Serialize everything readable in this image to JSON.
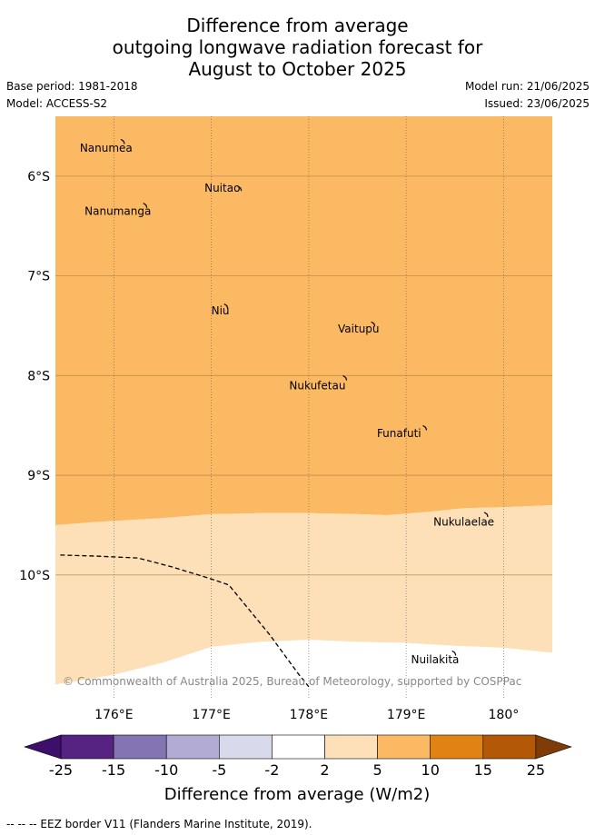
{
  "title": {
    "line1": "Difference from average",
    "line2": "outgoing longwave radiation forecast for",
    "line3": "August to October 2025"
  },
  "meta": {
    "base_period": "Base period: 1981-2018",
    "model": "Model: ACCESS-S2",
    "model_run": "Model run: 21/06/2025",
    "issued": "Issued: 23/06/2025"
  },
  "map": {
    "lon_range": [
      175.4,
      180.5
    ],
    "lat_range": [
      -5.4,
      -11.25
    ],
    "lon_ticks": [
      {
        "value": 176,
        "label": "176°E"
      },
      {
        "value": 177,
        "label": "177°E"
      },
      {
        "value": 178,
        "label": "178°E"
      },
      {
        "value": 179,
        "label": "179°E"
      },
      {
        "value": 180,
        "label": "180°"
      }
    ],
    "lat_ticks": [
      {
        "value": -6,
        "label": "6°S"
      },
      {
        "value": -7,
        "label": "7°S"
      },
      {
        "value": -8,
        "label": "8°S"
      },
      {
        "value": -9,
        "label": "9°S"
      },
      {
        "value": -10,
        "label": "10°S"
      }
    ],
    "base_fill_color": "#fcb964",
    "lower_fill_color": "#fde0b8",
    "lower_zone_boundary": [
      [
        175.4,
        -9.5
      ],
      [
        175.8,
        -9.47
      ],
      [
        176.5,
        -9.43
      ],
      [
        177.0,
        -9.39
      ],
      [
        177.5,
        -9.38
      ],
      [
        178.0,
        -9.38
      ],
      [
        178.5,
        -9.39
      ],
      [
        178.8,
        -9.4
      ],
      [
        179.2,
        -9.37
      ],
      [
        179.6,
        -9.33
      ],
      [
        180.0,
        -9.32
      ],
      [
        180.5,
        -9.3
      ]
    ],
    "lower_zone_bottom": [
      [
        180.5,
        -10.78
      ],
      [
        180.0,
        -10.73
      ],
      [
        179.5,
        -10.71
      ],
      [
        179.0,
        -10.68
      ],
      [
        178.5,
        -10.67
      ],
      [
        178.0,
        -10.65
      ],
      [
        177.5,
        -10.67
      ],
      [
        177.0,
        -10.72
      ],
      [
        176.5,
        -10.88
      ],
      [
        176.0,
        -11.0
      ],
      [
        175.4,
        -11.1
      ]
    ],
    "eez_border": [
      [
        175.45,
        -9.8
      ],
      [
        175.8,
        -9.81
      ],
      [
        176.25,
        -9.83
      ],
      [
        176.6,
        -9.92
      ],
      [
        177.0,
        -10.04
      ],
      [
        177.18,
        -10.1
      ],
      [
        177.6,
        -10.6
      ],
      [
        177.9,
        -11.0
      ],
      [
        178.0,
        -11.12
      ]
    ],
    "islands": [
      {
        "name": "Nanumea",
        "lon": 176.1,
        "lat": -5.65,
        "label_lon": 175.65,
        "label_lat": -5.72
      },
      {
        "name": "Nuitao",
        "lon": 177.3,
        "lat": -6.12,
        "label_lon": 176.93,
        "label_lat": -6.12
      },
      {
        "name": "Nanumanga",
        "lon": 176.33,
        "lat": -6.29,
        "label_lon": 175.7,
        "label_lat": -6.35
      },
      {
        "name": "Niu",
        "lon": 177.16,
        "lat": -7.3,
        "label_lon": 177.0,
        "label_lat": -7.35
      },
      {
        "name": "Vaitupu",
        "lon": 178.67,
        "lat": -7.48,
        "label_lon": 178.3,
        "label_lat": -7.53
      },
      {
        "name": "Nukufetau",
        "lon": 178.38,
        "lat": -8.02,
        "label_lon": 177.8,
        "label_lat": -8.1
      },
      {
        "name": "Funafuti",
        "lon": 179.2,
        "lat": -8.52,
        "label_lon": 178.7,
        "label_lat": -8.58
      },
      {
        "name": "Nukulaelae",
        "lon": 179.83,
        "lat": -9.39,
        "label_lon": 179.28,
        "label_lat": -9.47
      },
      {
        "name": "Nuilakita",
        "lon": 179.5,
        "lat": -10.78,
        "label_lon": 179.05,
        "label_lat": -10.85
      }
    ],
    "copyright": "© Commonwealth of Australia 2025, Bureau of Meteorology, supported by COSPPac"
  },
  "colorbar": {
    "ticks": [
      "-25",
      "-15",
      "-10",
      "-5",
      "-2",
      "2",
      "5",
      "10",
      "15",
      "25"
    ],
    "colors": [
      "#562383",
      "#8474b3",
      "#b2abd3",
      "#d8d9eb",
      "#ffffff",
      "#fde0b8",
      "#fcb964",
      "#e08214",
      "#b35806"
    ],
    "extend_low_color": "#3d0f6b",
    "extend_high_color": "#7f3b08",
    "label": "Difference from average (W/m2)"
  },
  "footer": "-- -- -- EEZ border V11 (Flanders Marine Institute, 2019)."
}
